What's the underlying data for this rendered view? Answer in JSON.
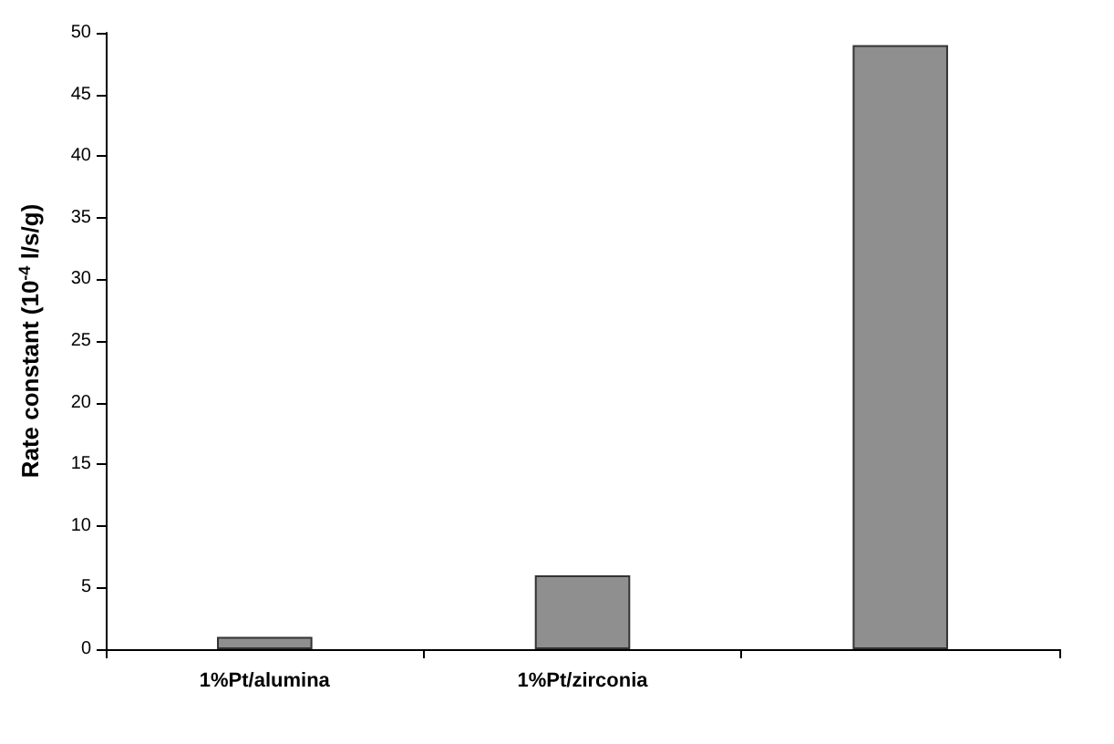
{
  "chart_data": {
    "type": "bar",
    "ylabel": "Rate constant (10$^{-4}$ l/s/g)",
    "categories": [
      "1%Pt/alumina",
      "1%Pt/zirconia",
      null
    ],
    "values": [
      1,
      6,
      49
    ],
    "color": "#8f8f8f",
    "ylim": [
      0,
      50
    ],
    "yticks": [
      0,
      5,
      10,
      15,
      20,
      25,
      30,
      35,
      40,
      45,
      50
    ],
    "grid": false
  }
}
